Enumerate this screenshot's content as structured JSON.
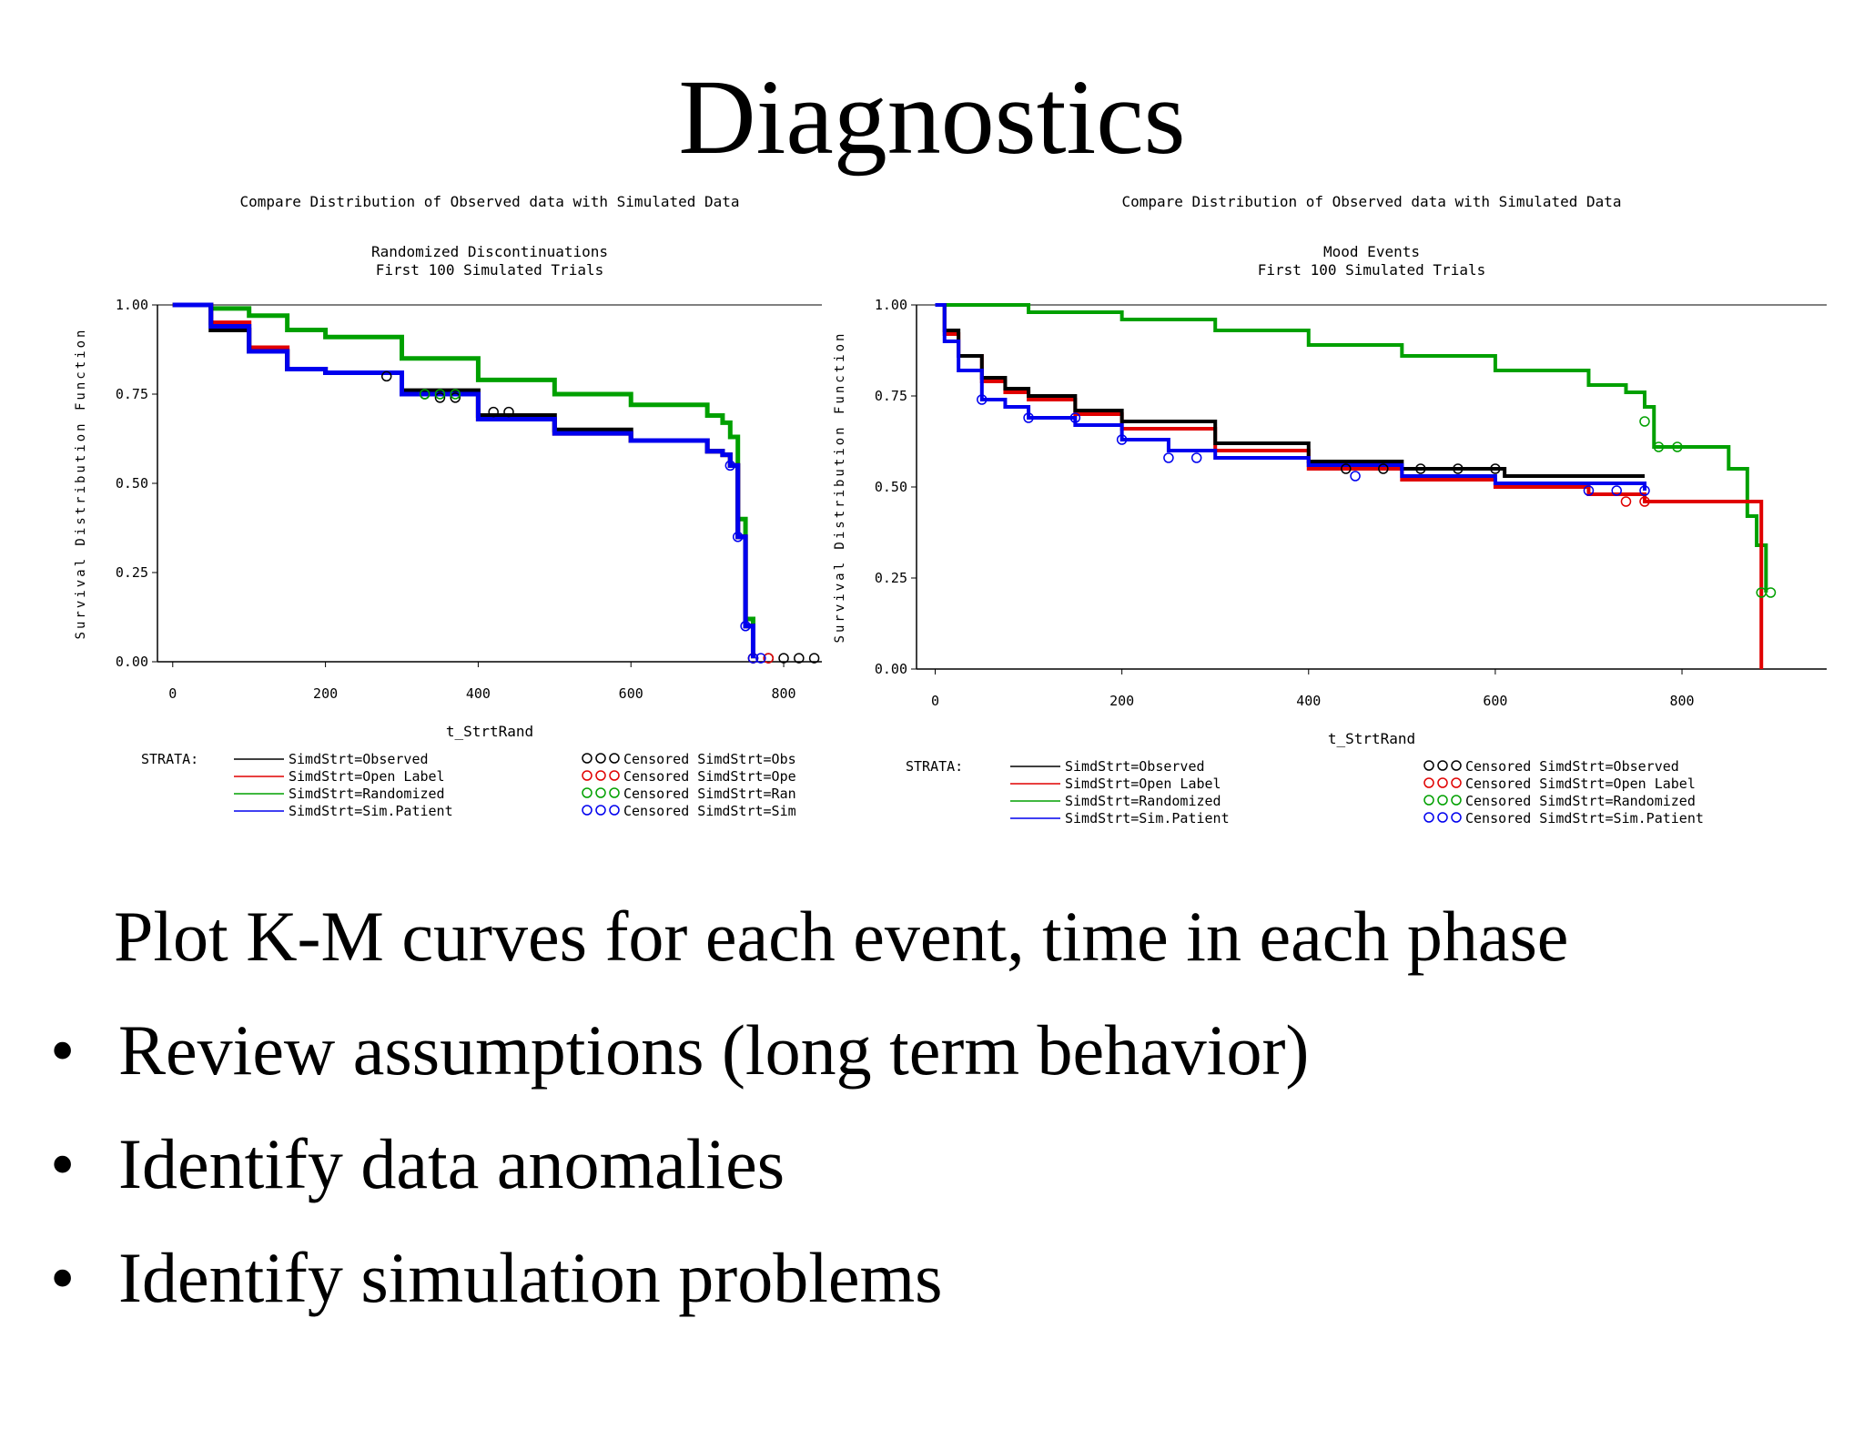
{
  "slide": {
    "title": "Diagnostics",
    "subtitle_line": "Plot K-M curves for each event, time in each phase",
    "bullets": [
      "Review assumptions (long term behavior)",
      "Identify data anomalies",
      "Identify simulation problems"
    ],
    "bullet_symbol": "•"
  },
  "chart_data": [
    {
      "type": "line",
      "title": "Compare Distribution of Observed data with Simulated Data",
      "subtitle": [
        "Randomized Discontinuations",
        "First 100 Simulated Trials"
      ],
      "xlabel": "t_StrtRand",
      "ylabel": "Survival Distribution Function",
      "xlim": [
        -20,
        850
      ],
      "ylim": [
        0,
        1.0
      ],
      "xticks": [
        0,
        200,
        400,
        600,
        800
      ],
      "yticks": [
        0.0,
        0.25,
        0.5,
        0.75,
        1.0
      ],
      "ytick_labels": [
        "0.00",
        "0.25",
        "0.50",
        "0.75",
        "1.00"
      ],
      "grid": false,
      "legend_title": "STRATA:",
      "legend_placement": "bottom",
      "legend_lines": [
        "SimdStrt=Observed",
        "SimdStrt=Open Label",
        "SimdStrt=Randomized",
        "SimdStrt=Sim.Patient"
      ],
      "legend_markers": [
        "Censored SimdStrt=Obs",
        "Censored SimdStrt=Ope",
        "Censored SimdStrt=Ran",
        "Censored SimdStrt=Sim"
      ],
      "series": [
        {
          "color": "#00a000",
          "x": [
            0,
            50,
            100,
            150,
            200,
            300,
            400,
            500,
            600,
            700,
            720,
            730,
            740,
            750,
            760
          ],
          "y": [
            1.0,
            0.99,
            0.97,
            0.93,
            0.91,
            0.85,
            0.79,
            0.75,
            0.72,
            0.69,
            0.67,
            0.63,
            0.4,
            0.12,
            0.01
          ]
        },
        {
          "color": "#e00000",
          "x": [
            0,
            50,
            100,
            150,
            200,
            300,
            400,
            500,
            600,
            700,
            720,
            730,
            740,
            750,
            760
          ],
          "y": [
            1.0,
            0.95,
            0.88,
            0.82,
            0.81,
            0.75,
            0.68,
            0.64,
            0.62,
            0.59,
            0.58,
            0.55,
            0.35,
            0.1,
            0.01
          ]
        },
        {
          "color": "#000000",
          "x": [
            0,
            50,
            100,
            150,
            200,
            300,
            400,
            500,
            600,
            700,
            720,
            730,
            740,
            750,
            760
          ],
          "y": [
            1.0,
            0.93,
            0.87,
            0.82,
            0.81,
            0.76,
            0.69,
            0.65,
            0.62,
            0.59,
            0.58,
            0.55,
            0.35,
            0.1,
            0.01
          ]
        },
        {
          "color": "#0000ee",
          "x": [
            0,
            50,
            100,
            150,
            200,
            300,
            400,
            500,
            600,
            700,
            720,
            730,
            740,
            750,
            760
          ],
          "y": [
            1.0,
            0.94,
            0.87,
            0.82,
            0.81,
            0.75,
            0.68,
            0.64,
            0.62,
            0.59,
            0.58,
            0.55,
            0.35,
            0.1,
            0.01
          ]
        }
      ],
      "censored": [
        {
          "color": "#000000",
          "x": [
            280,
            330,
            350,
            370,
            420,
            440,
            760,
            780,
            800,
            820,
            840
          ],
          "y": [
            0.8,
            0.75,
            0.74,
            0.74,
            0.7,
            0.7,
            0.01,
            0.01,
            0.01,
            0.01,
            0.01
          ]
        },
        {
          "color": "#00a000",
          "x": [
            330,
            350,
            370
          ],
          "y": [
            0.75,
            0.75,
            0.75
          ]
        },
        {
          "color": "#e00000",
          "x": [
            760,
            780
          ],
          "y": [
            0.01,
            0.01
          ]
        },
        {
          "color": "#0000ee",
          "x": [
            730,
            740,
            750,
            760,
            770
          ],
          "y": [
            0.55,
            0.35,
            0.1,
            0.01,
            0.01
          ]
        }
      ]
    },
    {
      "type": "line",
      "title": "Compare Distribution of Observed data with Simulated Data",
      "subtitle": [
        "Mood Events",
        "First 100 Simulated Trials"
      ],
      "xlabel": "t_StrtRand",
      "ylabel": "Survival Distribution Function",
      "xlim": [
        -20,
        955
      ],
      "ylim": [
        0,
        1.0
      ],
      "xticks": [
        0,
        200,
        400,
        600,
        800
      ],
      "yticks": [
        0.0,
        0.25,
        0.5,
        0.75,
        1.0
      ],
      "ytick_labels": [
        "0.00",
        "0.25",
        "0.50",
        "0.75",
        "1.00"
      ],
      "grid": false,
      "legend_title": "STRATA:",
      "legend_placement": "bottom",
      "legend_lines": [
        "SimdStrt=Observed",
        "SimdStrt=Open Label",
        "SimdStrt=Randomized",
        "SimdStrt=Sim.Patient"
      ],
      "legend_markers": [
        "Censored SimdStrt=Observed",
        "Censored SimdStrt=Open Label",
        "Censored SimdStrt=Randomized",
        "Censored SimdStrt=Sim.Patient"
      ],
      "series": [
        {
          "color": "#00a000",
          "x": [
            0,
            100,
            200,
            300,
            400,
            500,
            600,
            700,
            740,
            760,
            770,
            780,
            820,
            850,
            870,
            880,
            890
          ],
          "y": [
            1.0,
            0.98,
            0.96,
            0.93,
            0.89,
            0.86,
            0.82,
            0.78,
            0.76,
            0.72,
            0.61,
            0.61,
            0.61,
            0.55,
            0.42,
            0.34,
            0.21
          ]
        },
        {
          "color": "#e00000",
          "x": [
            0,
            10,
            25,
            50,
            75,
            100,
            150,
            200,
            300,
            400,
            500,
            600,
            700,
            760,
            885,
            885
          ],
          "y": [
            1.0,
            0.92,
            0.86,
            0.79,
            0.76,
            0.74,
            0.7,
            0.66,
            0.6,
            0.55,
            0.52,
            0.5,
            0.48,
            0.46,
            0.46,
            0.0
          ]
        },
        {
          "color": "#000000",
          "x": [
            0,
            10,
            25,
            50,
            75,
            100,
            150,
            200,
            300,
            400,
            500,
            600,
            610,
            760
          ],
          "y": [
            1.0,
            0.93,
            0.86,
            0.8,
            0.77,
            0.75,
            0.71,
            0.68,
            0.62,
            0.57,
            0.55,
            0.55,
            0.53,
            0.53
          ]
        },
        {
          "color": "#0000ee",
          "x": [
            0,
            10,
            25,
            50,
            75,
            100,
            150,
            200,
            250,
            300,
            400,
            500,
            600,
            760
          ],
          "y": [
            1.0,
            0.9,
            0.82,
            0.74,
            0.72,
            0.69,
            0.67,
            0.63,
            0.6,
            0.58,
            0.56,
            0.53,
            0.51,
            0.49
          ]
        }
      ],
      "censored": [
        {
          "color": "#000000",
          "x": [
            440,
            480,
            520,
            560,
            600
          ],
          "y": [
            0.55,
            0.55,
            0.55,
            0.55,
            0.55
          ]
        },
        {
          "color": "#0000ee",
          "x": [
            50,
            100,
            150,
            200,
            250,
            280,
            450,
            700,
            730,
            760
          ],
          "y": [
            0.74,
            0.69,
            0.69,
            0.63,
            0.58,
            0.58,
            0.53,
            0.49,
            0.49,
            0.49
          ]
        },
        {
          "color": "#00a000",
          "x": [
            760,
            775,
            795,
            885,
            895
          ],
          "y": [
            0.68,
            0.61,
            0.61,
            0.21,
            0.21
          ]
        },
        {
          "color": "#e00000",
          "x": [
            740,
            760
          ],
          "y": [
            0.46,
            0.46
          ]
        }
      ]
    }
  ]
}
